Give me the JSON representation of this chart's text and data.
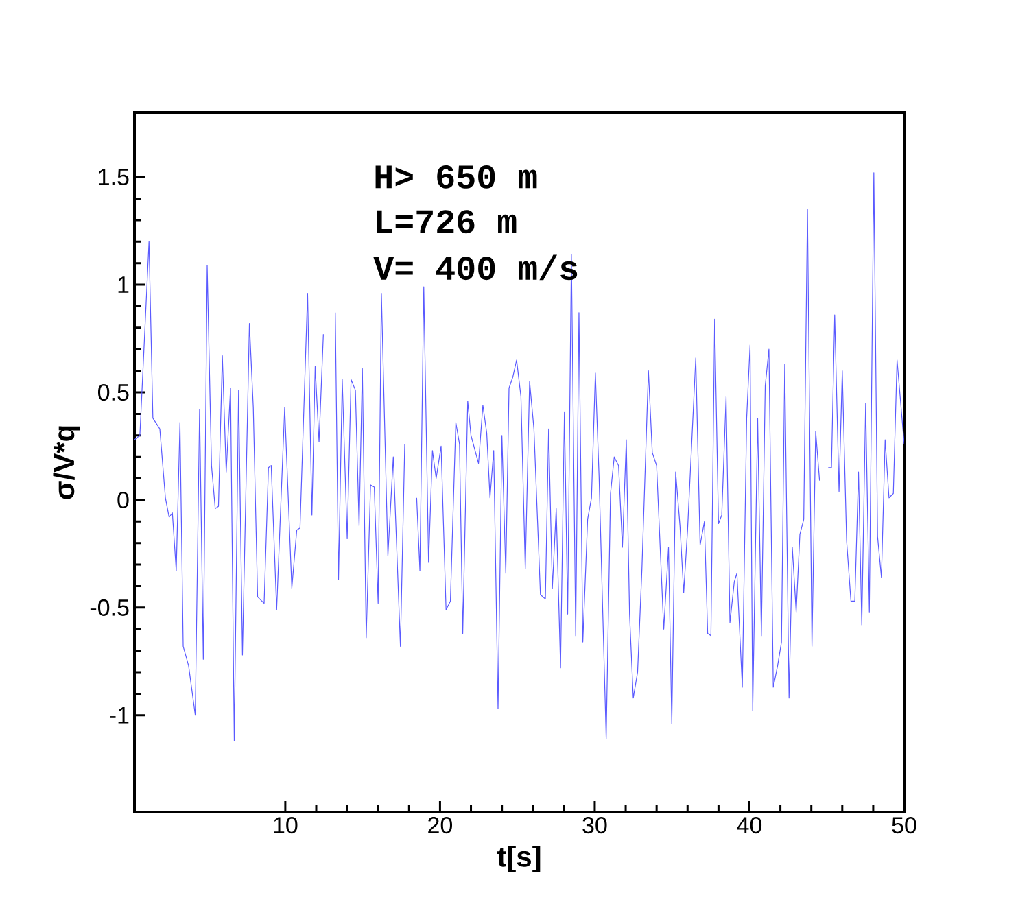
{
  "chart_data": {
    "type": "line",
    "xlabel": "t[s]",
    "ylabel": "σ/V*q",
    "annotations": [
      "H> 650 m",
      "L=726 m",
      "V= 400 m/s"
    ],
    "xlim": [
      0.25,
      50
    ],
    "ylim": [
      -1.45,
      1.8
    ],
    "xticks": [
      10,
      20,
      30,
      40,
      50
    ],
    "yticks": [
      -1,
      -0.5,
      0,
      0.5,
      1,
      1.5
    ],
    "marker": "none",
    "line_style": "solid",
    "series": [
      {
        "color": "#5a5aff",
        "x": [
          0.25,
          0.6,
          1.19,
          1.44,
          1.89,
          2.25,
          2.49,
          2.7,
          2.95,
          3.19,
          3.4,
          3.75,
          4.18,
          4.46,
          4.7,
          4.95,
          5.23,
          5.47,
          5.68,
          5.93,
          6.18,
          6.46,
          6.7,
          6.98,
          7.23,
          7.68,
          7.93,
          8.21,
          8.63,
          8.91,
          9.09,
          9.44,
          9.96,
          10.42,
          10.74,
          10.95,
          11.44,
          11.72,
          11.93,
          12.18,
          12.46,
          12.7,
          13.23,
          13.44,
          13.68,
          14.0,
          14.25,
          14.53,
          14.77,
          14.98,
          15.23,
          15.51,
          15.75,
          16.0,
          16.21,
          16.63,
          16.98,
          17.44,
          17.72,
          18.04,
          18.49,
          18.7,
          18.95,
          19.26,
          19.51,
          19.75,
          20.07,
          20.39,
          20.67,
          21.02,
          21.26,
          21.47,
          21.79,
          22.0,
          22.49,
          22.77,
          23.02,
          23.23,
          23.47,
          23.75,
          24.0,
          24.25,
          24.46,
          24.7,
          24.95,
          25.23,
          25.51,
          25.79,
          26.07,
          26.49,
          26.81,
          27.02,
          27.26,
          27.51,
          27.79,
          28.04,
          28.25,
          28.49,
          28.77,
          28.98,
          29.23,
          29.54,
          29.79,
          30.04,
          30.28,
          30.74,
          31.02,
          31.26,
          31.54,
          31.79,
          32.04,
          32.25,
          32.49,
          32.77,
          33.05,
          33.47,
          33.72,
          34.0,
          34.46,
          34.77,
          34.98,
          35.23,
          35.51,
          35.75,
          36.0,
          36.53,
          36.81,
          37.09,
          37.3,
          37.51,
          37.75,
          38.0,
          38.21,
          38.49,
          38.74,
          39.02,
          39.19,
          39.54,
          39.82,
          40.04,
          40.21,
          40.53,
          40.77,
          41.02,
          41.26,
          41.54,
          41.82,
          42.07,
          42.28,
          42.56,
          42.77,
          43.02,
          43.26,
          43.51,
          43.75,
          44.04,
          44.28,
          44.53,
          44.77,
          45.09,
          45.3,
          45.51,
          45.79,
          46.0,
          46.28,
          46.56,
          46.81,
          47.05,
          47.26,
          47.51,
          47.75,
          48.04,
          48.28,
          48.53,
          48.77,
          49.02,
          49.3,
          49.54,
          50.0
        ],
        "values": [
          0.28,
          0.3,
          1.2,
          0.38,
          0.33,
          0.01,
          -0.08,
          -0.06,
          -0.33,
          0.36,
          -0.68,
          -0.77,
          -1.0,
          0.42,
          -0.74,
          1.09,
          0.16,
          -0.04,
          -0.03,
          0.67,
          0.13,
          0.52,
          -1.12,
          0.51,
          -0.72,
          0.82,
          0.43,
          -0.45,
          -0.48,
          0.15,
          0.16,
          -0.51,
          0.43,
          -0.41,
          -0.14,
          -0.13,
          0.96,
          -0.07,
          0.62,
          0.27,
          0.77,
          null,
          0.87,
          -0.37,
          0.56,
          -0.18,
          0.56,
          0.51,
          -0.12,
          0.61,
          -0.64,
          0.07,
          0.06,
          -0.48,
          0.96,
          -0.26,
          0.2,
          -0.68,
          0.26,
          null,
          0.01,
          -0.33,
          0.99,
          -0.29,
          0.23,
          0.1,
          0.25,
          -0.51,
          -0.47,
          0.36,
          0.26,
          -0.62,
          0.46,
          0.3,
          0.17,
          0.44,
          0.31,
          0.01,
          0.23,
          -0.97,
          0.3,
          -0.34,
          0.52,
          0.57,
          0.65,
          0.48,
          -0.32,
          0.55,
          0.33,
          -0.44,
          -0.46,
          0.33,
          -0.41,
          -0.04,
          -0.78,
          0.41,
          -0.53,
          1.14,
          -0.63,
          0.87,
          -0.66,
          -0.09,
          0.01,
          0.59,
          0.11,
          -1.11,
          0.03,
          0.2,
          0.16,
          -0.22,
          0.28,
          -0.53,
          -0.92,
          -0.8,
          -0.32,
          0.6,
          0.22,
          0.16,
          -0.6,
          -0.22,
          -1.04,
          0.13,
          -0.12,
          -0.43,
          -0.14,
          0.66,
          -0.21,
          -0.1,
          -0.62,
          -0.63,
          0.84,
          -0.11,
          -0.07,
          0.48,
          -0.57,
          -0.38,
          -0.34,
          -0.87,
          0.38,
          0.72,
          -0.98,
          0.38,
          -0.63,
          0.53,
          0.7,
          -0.87,
          -0.77,
          -0.66,
          0.63,
          -0.92,
          -0.22,
          -0.52,
          -0.16,
          -0.09,
          1.35,
          -0.68,
          0.32,
          0.09,
          null,
          0.15,
          0.15,
          0.86,
          0.04,
          0.6,
          -0.19,
          -0.47,
          -0.47,
          0.13,
          -0.58,
          0.45,
          -0.52,
          1.52,
          -0.17,
          -0.36,
          0.28,
          0.01,
          0.03,
          0.65,
          0.26
        ]
      }
    ]
  }
}
